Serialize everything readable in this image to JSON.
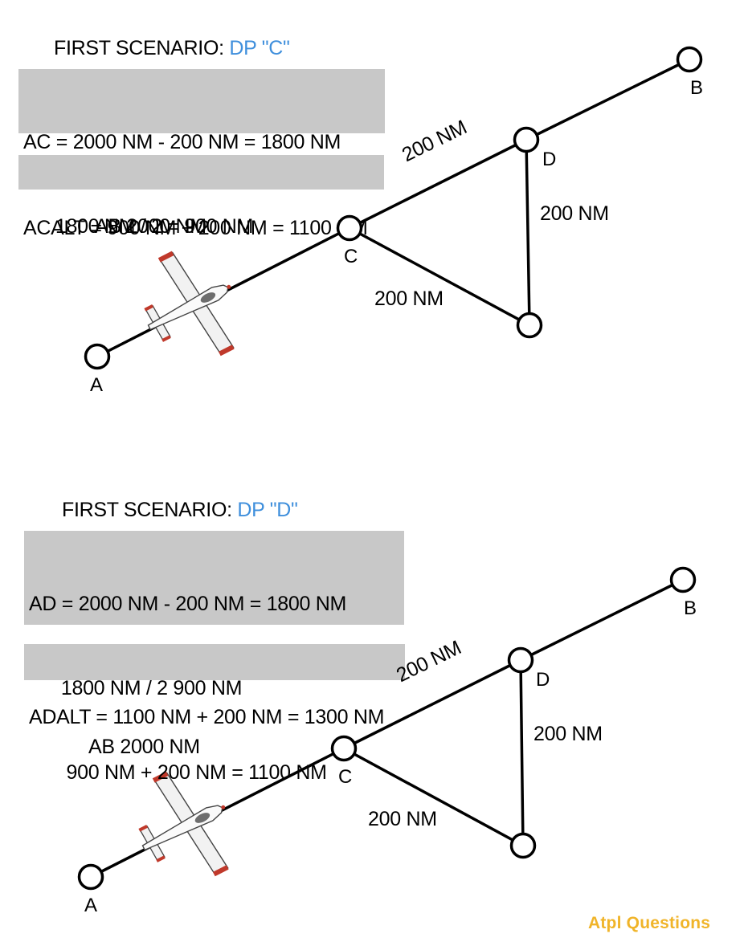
{
  "scenario1": {
    "title_prefix": "FIRST SCENARIO: ",
    "title_dp": "DP \"C\"",
    "calc1_line1": "AC = 2000 NM - 200 NM = 1800 NM",
    "calc1_line2": "      1800 NM / 2 = 900 NM",
    "calc2": "ACALT = 900 NM + 200 NM = 1100 NM",
    "route_label": "AB 2000 NM",
    "edge_cd": "200 NM",
    "edge_dlow": "200 NM",
    "edge_clow": "200 NM",
    "nodes": {
      "A": "A",
      "B": "B",
      "C": "C",
      "D": "D"
    }
  },
  "scenario2": {
    "title_prefix": "FIRST SCENARIO: ",
    "title_dp": "DP \"D\"",
    "calc1_line1": "AD = 2000 NM - 200 NM = 1800 NM",
    "calc1_line2": "      1800 NM / 2 900 NM",
    "calc1_line3": "       900 NM + 200 NM = 1100 NM",
    "calc2": "ADALT = 1100 NM + 200 NM = 1300 NM",
    "route_label": "AB 2000 NM",
    "edge_cd": "200 NM",
    "edge_dlow": "200 NM",
    "edge_clow": "200 NM",
    "nodes": {
      "A": "A",
      "B": "B",
      "C": "C",
      "D": "D"
    }
  },
  "brand": "Atpl Questions",
  "colors": {
    "accent": "#3f8fdc",
    "box": "#c8c8c8",
    "brand": "#f0b429"
  },
  "icons": [
    "airplane-icon"
  ]
}
